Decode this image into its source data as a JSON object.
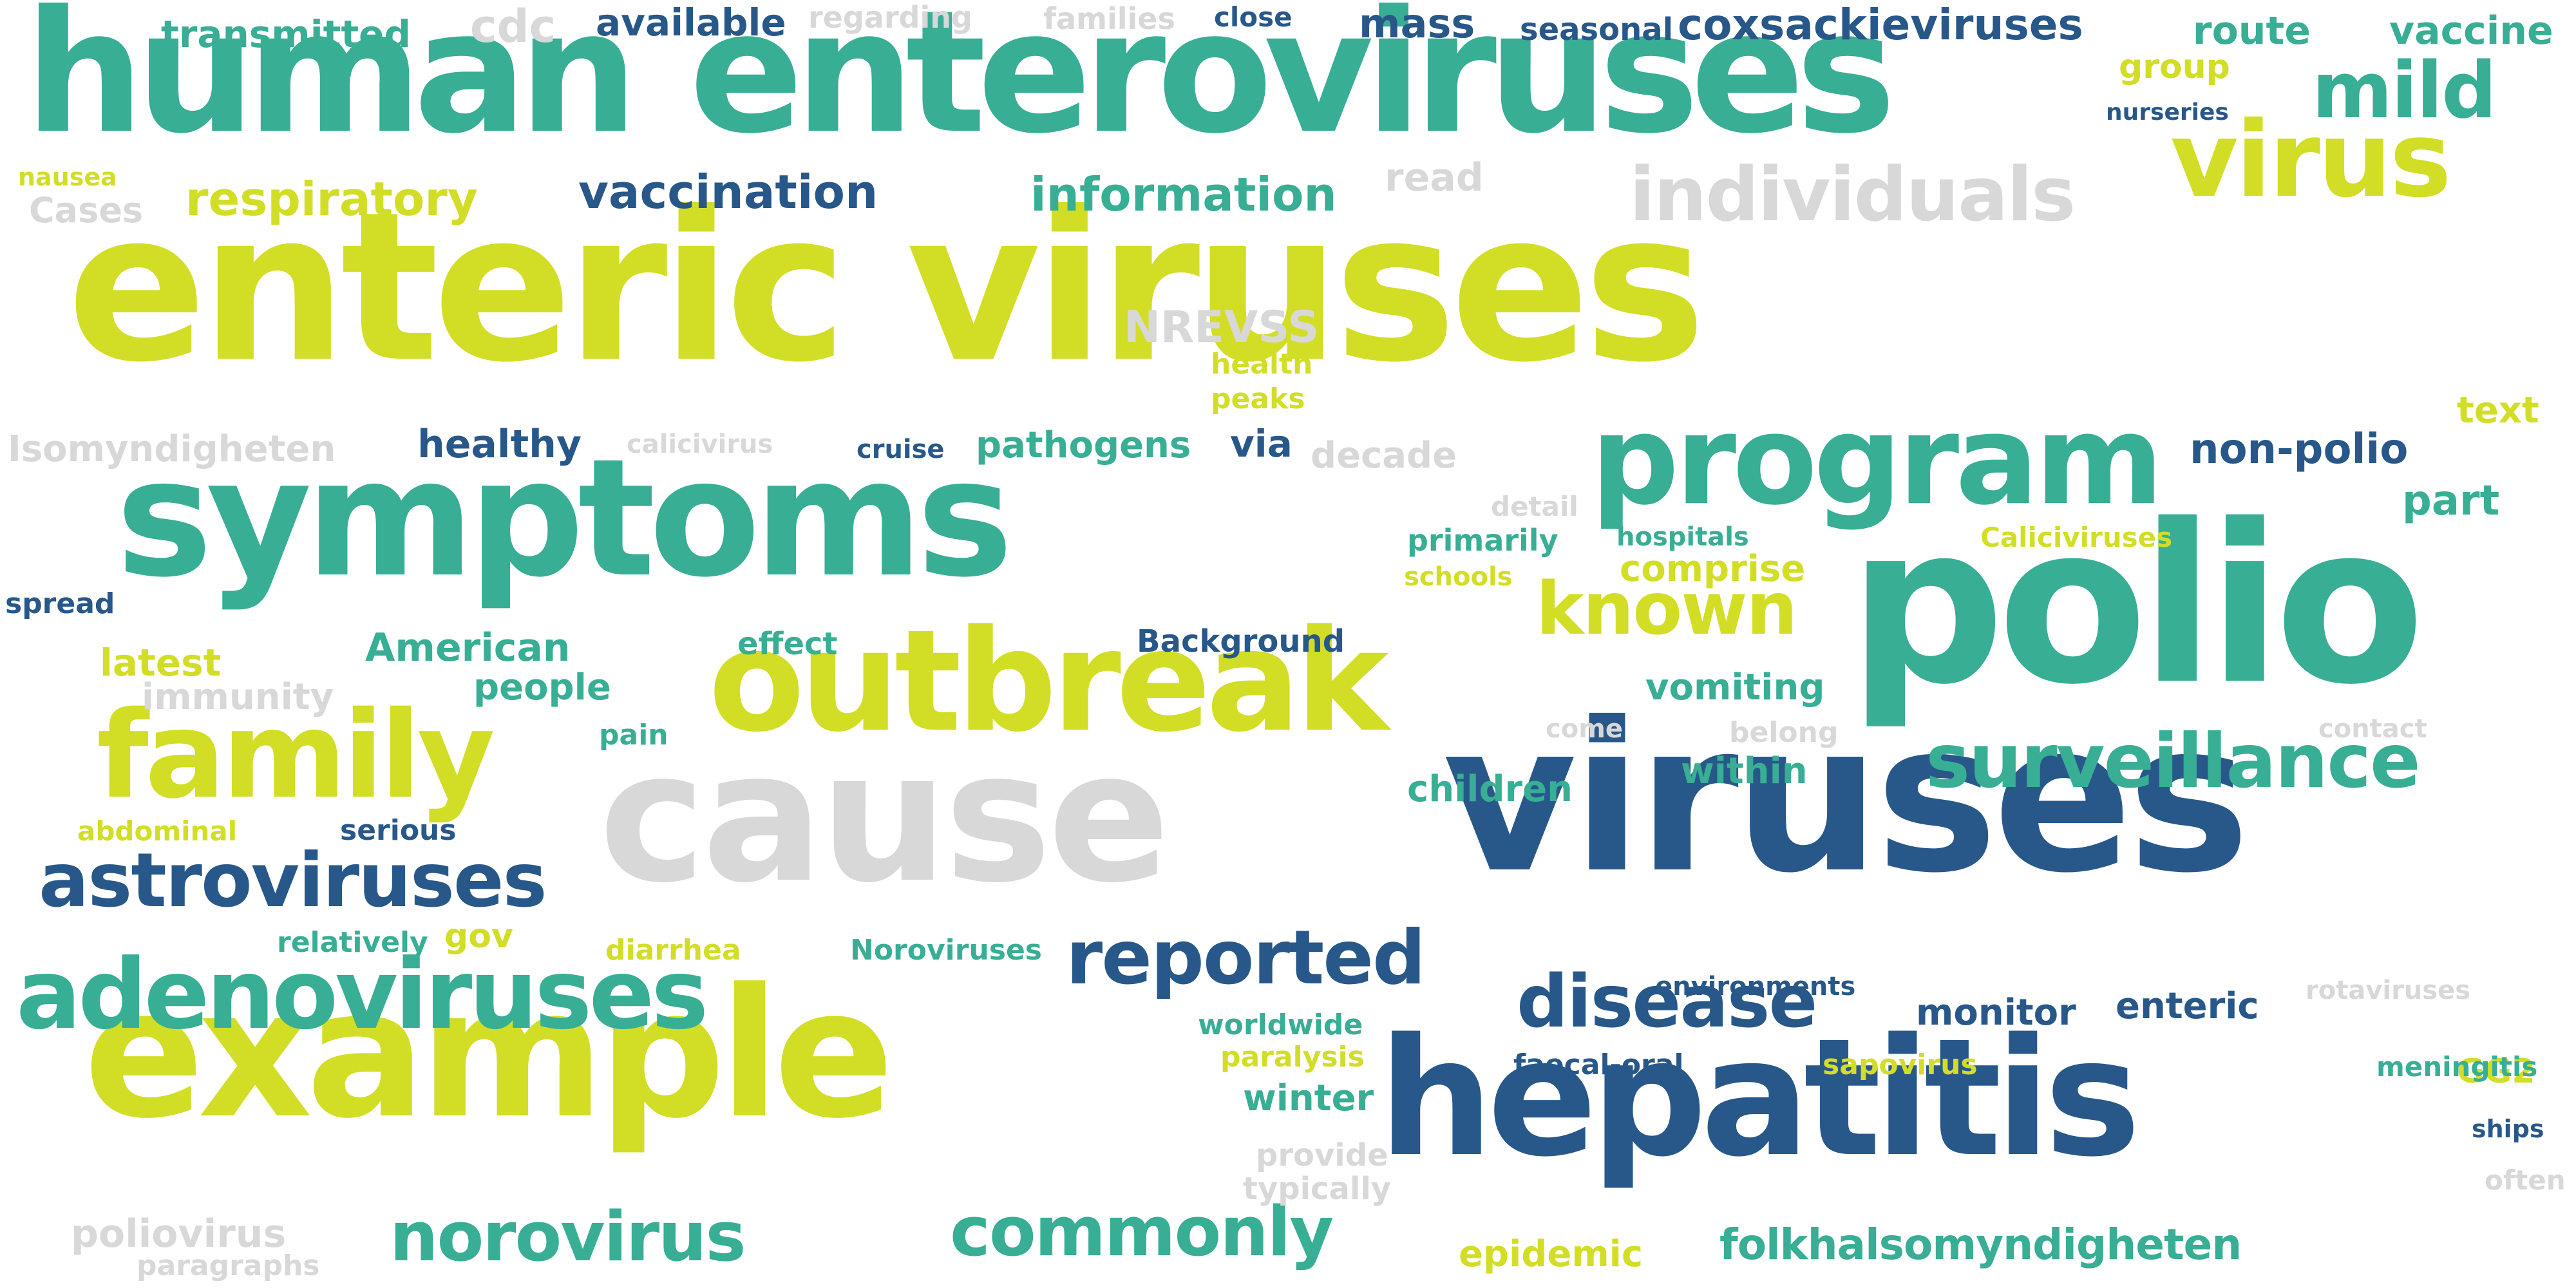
{
  "palette": {
    "lime": "#d2de26",
    "teal": "#38ae94",
    "navy": "#28588a",
    "grey": "#d8d8d8"
  },
  "words": [
    {
      "text": "enteric viruses",
      "color": "lime"
    },
    {
      "text": "human",
      "color": "teal"
    },
    {
      "text": "enteroviruses",
      "color": "teal"
    },
    {
      "text": "polio",
      "color": "teal"
    },
    {
      "text": "symptoms",
      "color": "teal"
    },
    {
      "text": "viruses",
      "color": "navy"
    },
    {
      "text": "cause",
      "color": "grey"
    },
    {
      "text": "example",
      "color": "lime"
    },
    {
      "text": "hepatitis",
      "color": "navy"
    },
    {
      "text": "outbreak",
      "color": "lime"
    },
    {
      "text": "program",
      "color": "teal"
    },
    {
      "text": "family",
      "color": "lime"
    },
    {
      "text": "adenoviruses",
      "color": "teal"
    },
    {
      "text": "virus",
      "color": "lime"
    },
    {
      "text": "individuals",
      "color": "grey"
    },
    {
      "text": "surveillance",
      "color": "teal"
    },
    {
      "text": "astroviruses",
      "color": "navy"
    },
    {
      "text": "disease",
      "color": "navy"
    },
    {
      "text": "reported",
      "color": "navy"
    },
    {
      "text": "norovirus",
      "color": "teal"
    },
    {
      "text": "commonly",
      "color": "teal"
    },
    {
      "text": "known",
      "color": "lime"
    },
    {
      "text": "mild",
      "color": "teal"
    },
    {
      "text": "folkhalsomyndigheten",
      "color": "teal"
    },
    {
      "text": "coxsackieviruses",
      "color": "navy"
    },
    {
      "text": "vaccination",
      "color": "navy"
    },
    {
      "text": "information",
      "color": "teal"
    },
    {
      "text": "respiratory",
      "color": "lime"
    },
    {
      "text": "transmitted",
      "color": "teal"
    },
    {
      "text": "available",
      "color": "navy"
    },
    {
      "text": "mass",
      "color": "navy"
    },
    {
      "text": "cdc",
      "color": "grey"
    },
    {
      "text": "route",
      "color": "teal"
    },
    {
      "text": "vaccine",
      "color": "teal"
    },
    {
      "text": "group",
      "color": "lime"
    },
    {
      "text": "non-polio",
      "color": "navy"
    },
    {
      "text": "part",
      "color": "teal"
    },
    {
      "text": "text",
      "color": "lime"
    },
    {
      "text": "healthy",
      "color": "navy"
    },
    {
      "text": "pathogens",
      "color": "teal"
    },
    {
      "text": "via",
      "color": "navy"
    },
    {
      "text": "decade",
      "color": "grey"
    },
    {
      "text": "Isomyndigheten",
      "color": "grey"
    },
    {
      "text": "American",
      "color": "teal"
    },
    {
      "text": "people",
      "color": "teal"
    },
    {
      "text": "latest",
      "color": "lime"
    },
    {
      "text": "immunity",
      "color": "grey"
    },
    {
      "text": "vomiting",
      "color": "teal"
    },
    {
      "text": "within",
      "color": "teal"
    },
    {
      "text": "children",
      "color": "teal"
    },
    {
      "text": "comprise",
      "color": "lime"
    },
    {
      "text": "epidemic",
      "color": "lime"
    },
    {
      "text": "winter",
      "color": "teal"
    },
    {
      "text": "monitor",
      "color": "navy"
    },
    {
      "text": "enteric",
      "color": "navy"
    },
    {
      "text": "GG2",
      "color": "lime"
    },
    {
      "text": "NREVSS",
      "color": "grey"
    },
    {
      "text": "poliovirus",
      "color": "grey"
    },
    {
      "text": "Cases",
      "color": "grey"
    },
    {
      "text": "read",
      "color": "grey"
    },
    {
      "text": "regarding",
      "color": "grey"
    },
    {
      "text": "families",
      "color": "grey"
    },
    {
      "text": "close",
      "color": "navy"
    },
    {
      "text": "seasonal",
      "color": "navy"
    },
    {
      "text": "nurseries",
      "color": "navy"
    },
    {
      "text": "nausea",
      "color": "lime"
    },
    {
      "text": "health",
      "color": "lime"
    },
    {
      "text": "peaks",
      "color": "lime"
    },
    {
      "text": "calicivirus",
      "color": "grey"
    },
    {
      "text": "cruise",
      "color": "navy"
    },
    {
      "text": "detail",
      "color": "grey"
    },
    {
      "text": "primarily",
      "color": "teal"
    },
    {
      "text": "hospitals",
      "color": "teal"
    },
    {
      "text": "Caliciviruses",
      "color": "lime"
    },
    {
      "text": "schools",
      "color": "lime"
    },
    {
      "text": "spread",
      "color": "navy"
    },
    {
      "text": "effect",
      "color": "teal"
    },
    {
      "text": "Background",
      "color": "navy"
    },
    {
      "text": "pain",
      "color": "teal"
    },
    {
      "text": "come",
      "color": "grey"
    },
    {
      "text": "belong",
      "color": "grey"
    },
    {
      "text": "contact",
      "color": "grey"
    },
    {
      "text": "abdominal",
      "color": "lime"
    },
    {
      "text": "serious",
      "color": "navy"
    },
    {
      "text": "relatively",
      "color": "teal"
    },
    {
      "text": "gov",
      "color": "lime"
    },
    {
      "text": "diarrhea",
      "color": "lime"
    },
    {
      "text": "Noroviruses",
      "color": "teal"
    },
    {
      "text": "environments",
      "color": "navy"
    },
    {
      "text": "rotaviruses",
      "color": "grey"
    },
    {
      "text": "worldwide",
      "color": "teal"
    },
    {
      "text": "paralysis",
      "color": "lime"
    },
    {
      "text": "faecal-oral",
      "color": "navy"
    },
    {
      "text": "sapovirus",
      "color": "lime"
    },
    {
      "text": "meningitis",
      "color": "teal"
    },
    {
      "text": "ships",
      "color": "navy"
    },
    {
      "text": "provide",
      "color": "grey"
    },
    {
      "text": "typically",
      "color": "grey"
    },
    {
      "text": "often",
      "color": "grey"
    },
    {
      "text": "paragraphs",
      "color": "grey"
    }
  ]
}
